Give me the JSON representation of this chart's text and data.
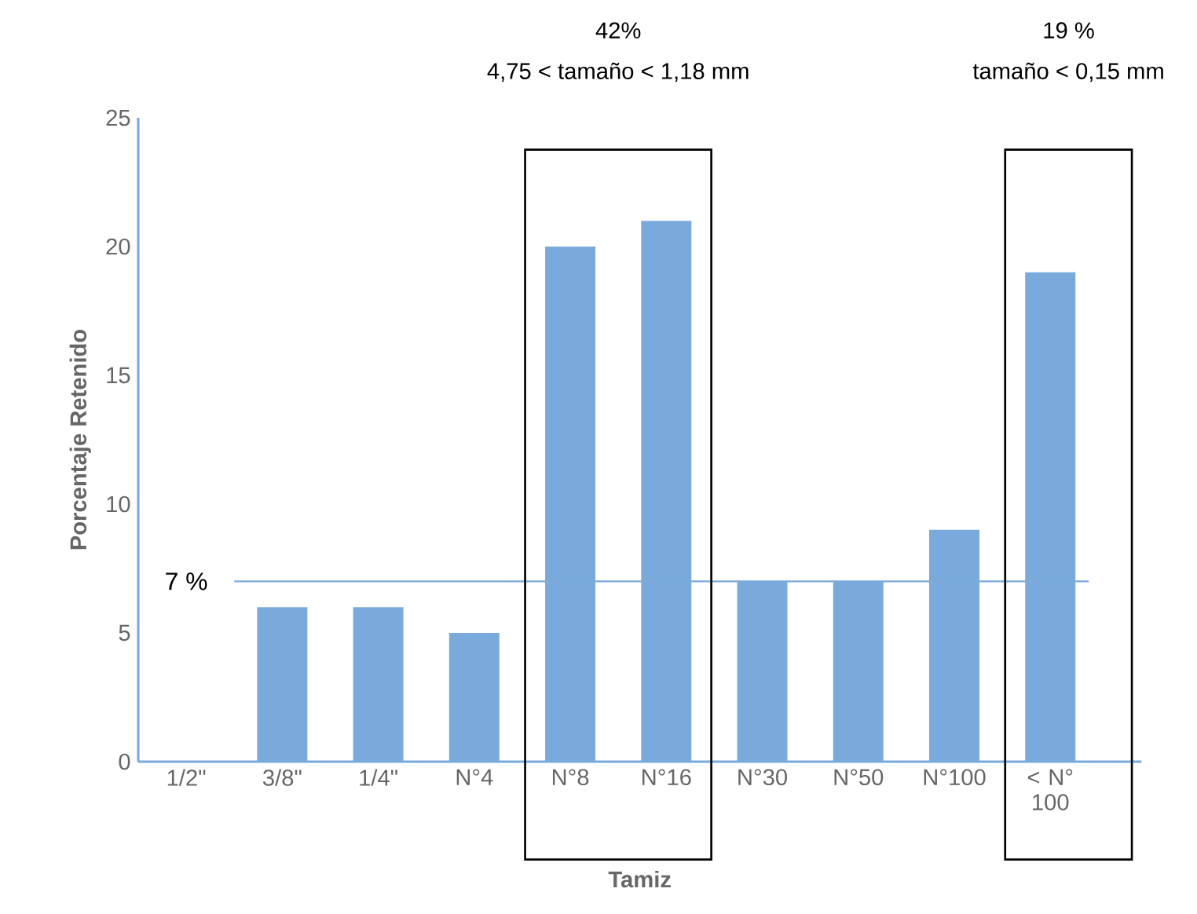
{
  "chart_data": {
    "type": "bar",
    "xlabel": "Tamiz",
    "ylabel": "Porcentaje Retenido",
    "categories": [
      "1/2\"",
      "3/8\"",
      "1/4\"",
      "N°4",
      "N°8",
      "N°16",
      "N°30",
      "N°50",
      "N°100",
      "< N° 100"
    ],
    "values": [
      0,
      6,
      6,
      5,
      20,
      21,
      7,
      7,
      9,
      19
    ],
    "color": "#7aaadc",
    "ylim": [
      0,
      25
    ],
    "yticks": [
      0,
      5,
      10,
      15,
      20,
      25
    ],
    "grid": false,
    "ref_lines": [
      {
        "axis": "y",
        "value": 7,
        "label": "7 %",
        "color": "#7aaadc"
      }
    ],
    "annotations": [
      "42%",
      "4,75 < tamaño < 1,18 mm",
      "19 %",
      "tamaño < 0,15 mm"
    ]
  }
}
